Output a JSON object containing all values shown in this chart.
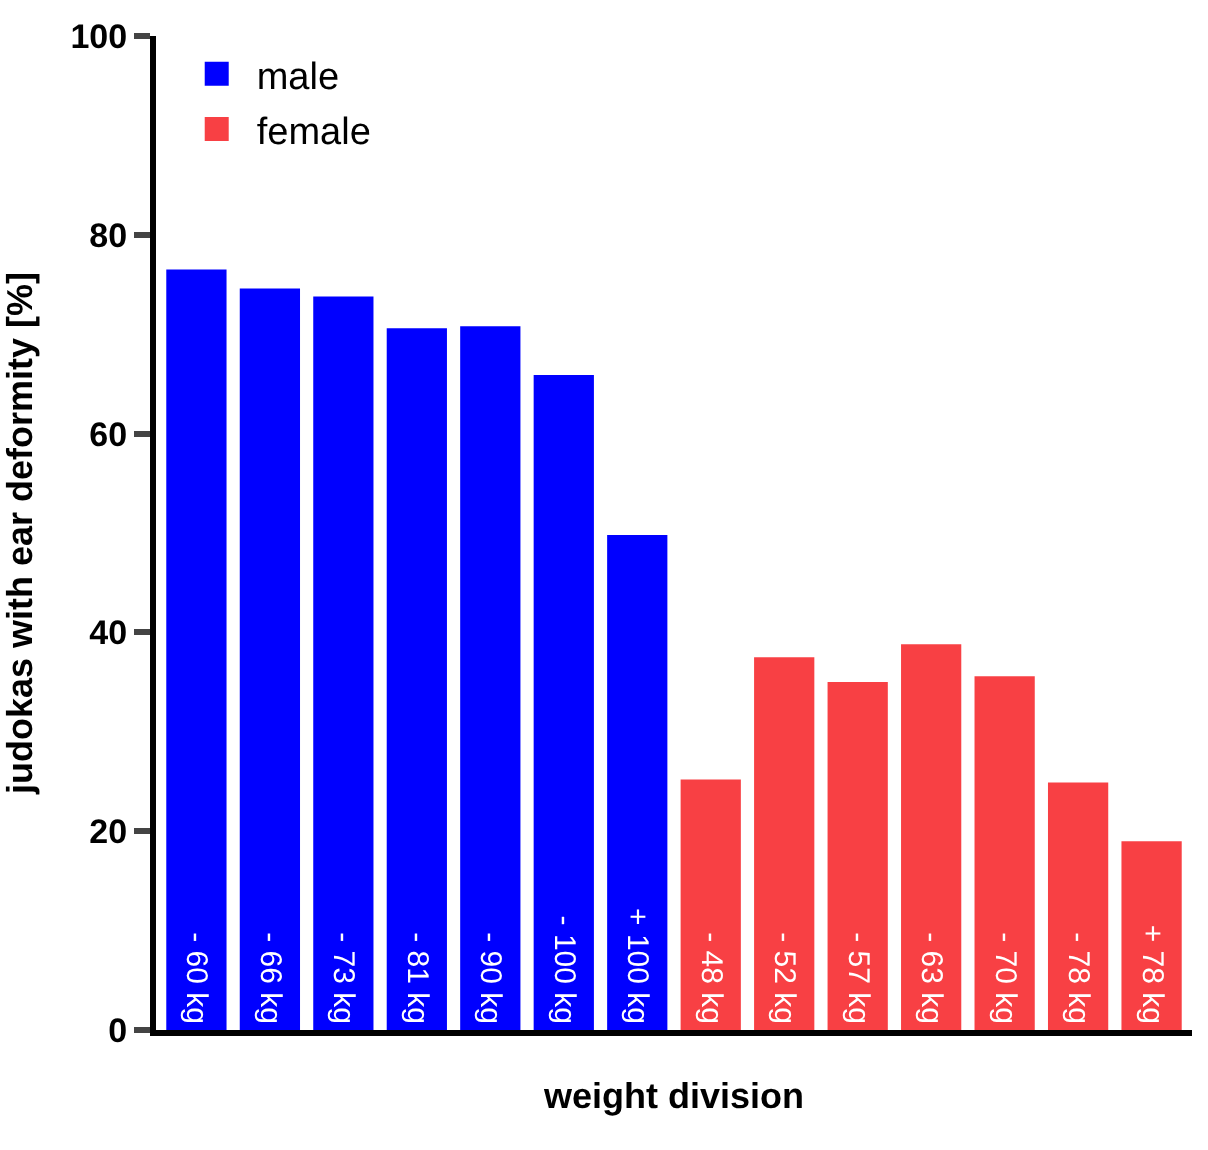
{
  "chart_data": {
    "type": "bar",
    "xlabel": "weight division",
    "ylabel": "judokas with ear deformity [%]",
    "categories": [
      "- 60 kg",
      "- 66 kg",
      "- 73 kg",
      "- 81 kg",
      "- 90 kg",
      "- 100 kg",
      "+ 100 kg",
      "- 48 kg",
      "- 52 kg",
      "- 57 kg",
      "- 63 kg",
      "- 70 kg",
      "- 78 kg",
      "+ 78 kg"
    ],
    "series": [
      {
        "name": "male",
        "color": "#0000ff",
        "values": [
          76.5,
          74.6,
          73.8,
          70.6,
          70.8,
          65.9,
          49.8,
          null,
          null,
          null,
          null,
          null,
          null,
          null
        ]
      },
      {
        "name": "female",
        "color": "#f84044",
        "values": [
          null,
          null,
          null,
          null,
          null,
          null,
          null,
          25.2,
          37.5,
          35.0,
          38.8,
          35.6,
          24.9,
          19.0
        ]
      }
    ],
    "ylim": [
      0,
      100
    ],
    "yticks": [
      0,
      20,
      40,
      60,
      80,
      100
    ],
    "legend": "top left"
  }
}
